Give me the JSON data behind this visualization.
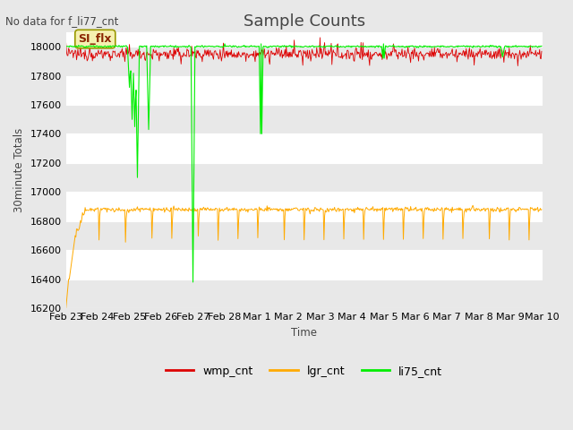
{
  "title": "Sample Counts",
  "ylabel": "30minute Totals",
  "xlabel": "Time",
  "no_data_text": "No data for f_li77_cnt",
  "annotation_text": "SI_flx",
  "ylim": [
    16200,
    18100
  ],
  "yticks": [
    16200,
    16400,
    16600,
    16800,
    17000,
    17200,
    17400,
    17600,
    17800,
    18000
  ],
  "bg_color": "#e8e8e8",
  "plot_bg_color": "#ffffff",
  "grid_color": "#cccccc",
  "band_color": "#e8e8e8",
  "wmp_color": "#dd0000",
  "lgr_color": "#ffaa00",
  "li75_color": "#00ee00",
  "legend_labels": [
    "wmp_cnt",
    "lgr_cnt",
    "li75_cnt"
  ],
  "wmp_base": 17950,
  "lgr_base": 16880,
  "li75_base": 18002,
  "num_points": 720,
  "day_labels": [
    "Feb 23",
    "Feb 24",
    "Feb 25",
    "Feb 26",
    "Feb 27",
    "Feb 28",
    "Mar 1",
    "Mar 2",
    "Mar 3",
    "Mar 4",
    "Mar 5",
    "Mar 6",
    "Mar 7",
    "Mar 8",
    "Mar 9",
    "Mar 10"
  ]
}
